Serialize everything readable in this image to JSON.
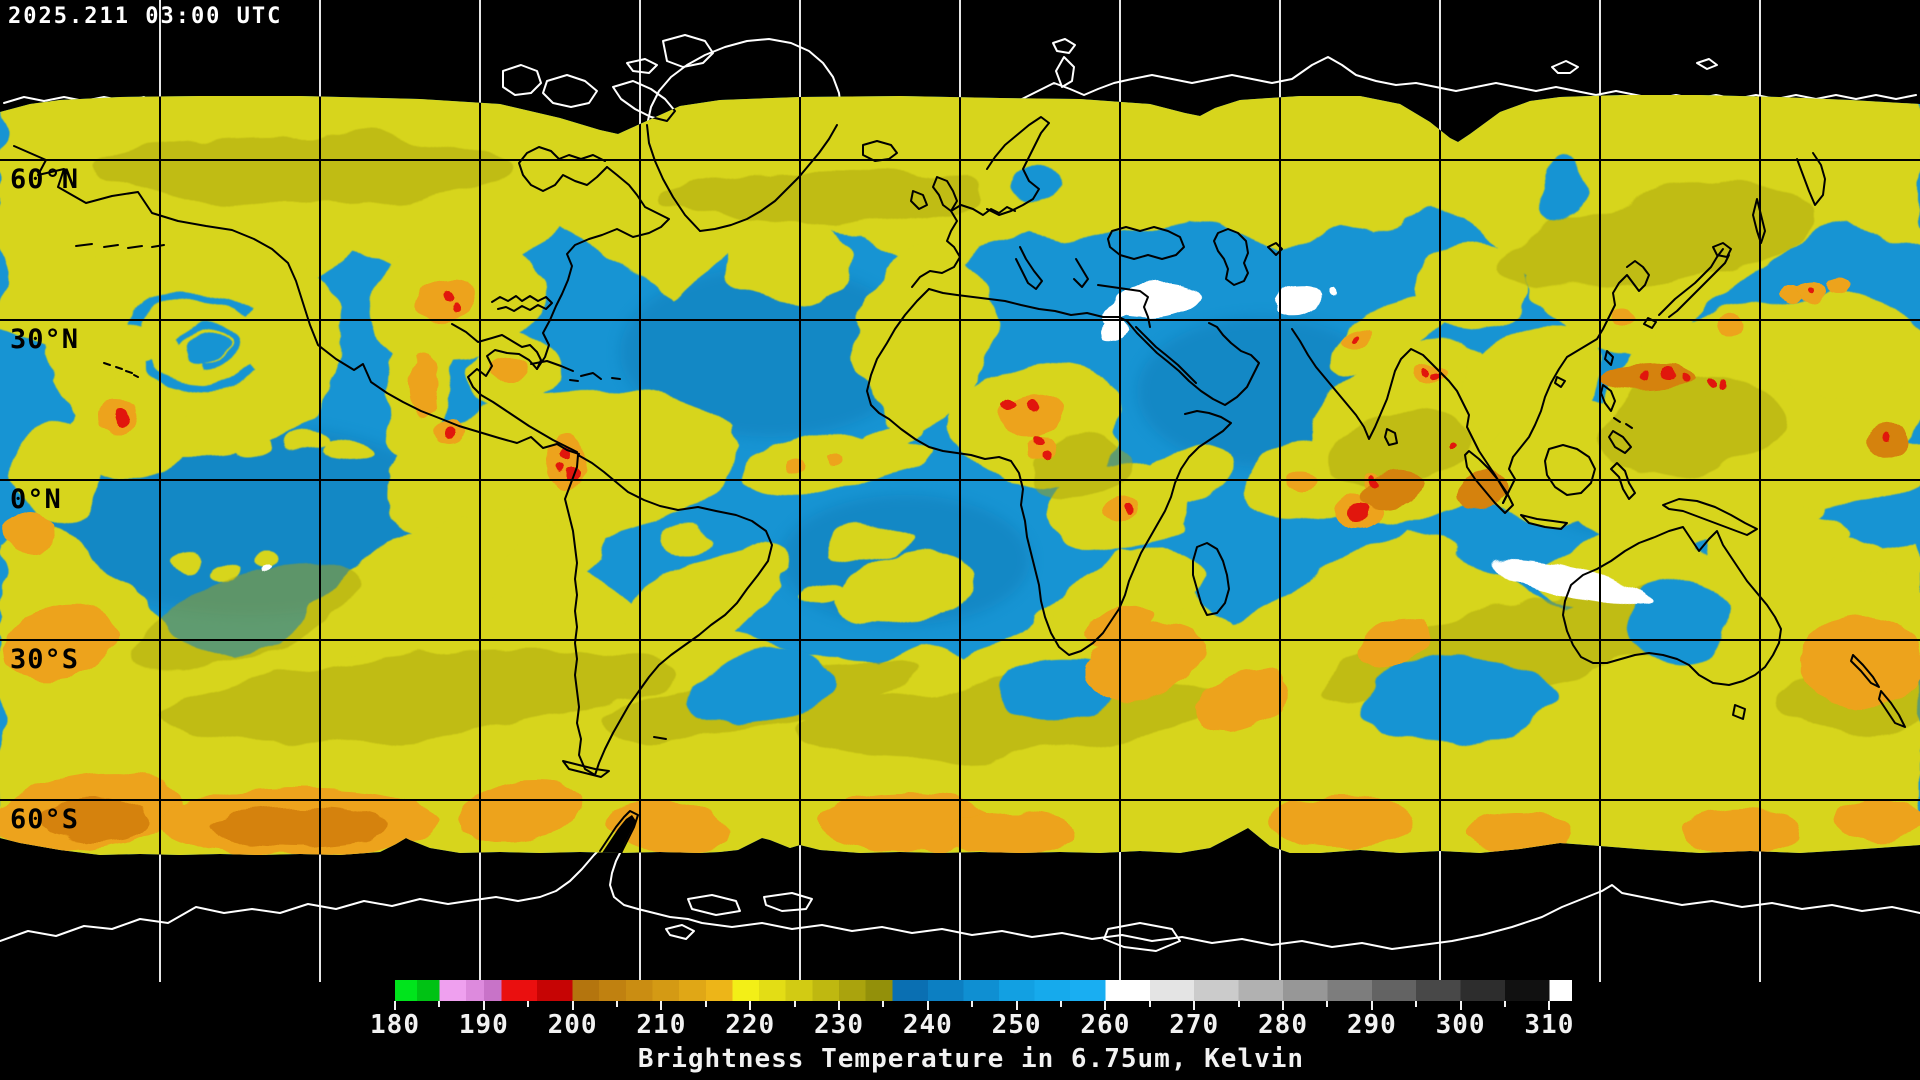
{
  "header": {
    "timestamp": "2025.211 03:00 UTC"
  },
  "map": {
    "latitude_labels": [
      "60°N",
      "30°N",
      "0°N",
      "30°S",
      "60°S"
    ],
    "graticule_interval_deg": 30,
    "palette": {
      "background": "#000000",
      "moist_blue": "#1794d3",
      "dry_yellow": "#d7d51d",
      "olive_shade": "#a8a30b",
      "cold_orange": "#eda31a",
      "deep_orange": "#d5820e",
      "convective_red": "#e11207",
      "warm_white": "#ffffff",
      "coast_on_data": "#000000",
      "coast_on_void": "#ffffff"
    }
  },
  "legend": {
    "caption": "Brightness Temperature in 6.75um, Kelvin",
    "unit": "Kelvin",
    "min": 180,
    "max": 310,
    "major_step": 10,
    "minor_step": 5,
    "tick_labels": [
      "180",
      "190",
      "200",
      "210",
      "220",
      "230",
      "240",
      "250",
      "260",
      "270",
      "280",
      "290",
      "300",
      "310"
    ],
    "overflow_cap_color": "#ffffff",
    "segments": [
      {
        "from": 180.0,
        "to": 182.5,
        "color": "#00e41c"
      },
      {
        "from": 182.5,
        "to": 185.0,
        "color": "#00c214"
      },
      {
        "from": 185.0,
        "to": 188.0,
        "color": "#efa0ef"
      },
      {
        "from": 188.0,
        "to": 190.0,
        "color": "#dd8add"
      },
      {
        "from": 190.0,
        "to": 192.0,
        "color": "#c873c8"
      },
      {
        "from": 192.0,
        "to": 196.0,
        "color": "#ea0f0f"
      },
      {
        "from": 196.0,
        "to": 200.0,
        "color": "#c60404"
      },
      {
        "from": 200.0,
        "to": 203.0,
        "color": "#b4750e"
      },
      {
        "from": 203.0,
        "to": 206.0,
        "color": "#c08110"
      },
      {
        "from": 206.0,
        "to": 209.0,
        "color": "#ca8d12"
      },
      {
        "from": 209.0,
        "to": 212.0,
        "color": "#d49a14"
      },
      {
        "from": 212.0,
        "to": 215.0,
        "color": "#e0a716"
      },
      {
        "from": 215.0,
        "to": 218.0,
        "color": "#edb518"
      },
      {
        "from": 218.0,
        "to": 221.0,
        "color": "#f3ef17"
      },
      {
        "from": 221.0,
        "to": 224.0,
        "color": "#e3dd15"
      },
      {
        "from": 224.0,
        "to": 227.0,
        "color": "#d2cb13"
      },
      {
        "from": 227.0,
        "to": 230.0,
        "color": "#bfb810"
      },
      {
        "from": 230.0,
        "to": 233.0,
        "color": "#aaa30d"
      },
      {
        "from": 233.0,
        "to": 236.0,
        "color": "#93900a"
      },
      {
        "from": 236.0,
        "to": 240.0,
        "color": "#0a6fb2"
      },
      {
        "from": 240.0,
        "to": 244.0,
        "color": "#0c7fc2"
      },
      {
        "from": 244.0,
        "to": 248.0,
        "color": "#0f8fd2"
      },
      {
        "from": 248.0,
        "to": 252.0,
        "color": "#12a0e2"
      },
      {
        "from": 252.0,
        "to": 256.0,
        "color": "#16aaec"
      },
      {
        "from": 256.0,
        "to": 260.0,
        "color": "#19aef2"
      },
      {
        "from": 260.0,
        "to": 265.0,
        "color": "#ffffff"
      },
      {
        "from": 265.0,
        "to": 270.0,
        "color": "#e4e4e4"
      },
      {
        "from": 270.0,
        "to": 275.0,
        "color": "#cbcbcb"
      },
      {
        "from": 275.0,
        "to": 280.0,
        "color": "#b1b1b1"
      },
      {
        "from": 280.0,
        "to": 285.0,
        "color": "#979797"
      },
      {
        "from": 285.0,
        "to": 290.0,
        "color": "#7d7d7d"
      },
      {
        "from": 290.0,
        "to": 295.0,
        "color": "#636363"
      },
      {
        "from": 295.0,
        "to": 300.0,
        "color": "#484848"
      },
      {
        "from": 300.0,
        "to": 305.0,
        "color": "#2d2d2d"
      },
      {
        "from": 305.0,
        "to": 310.0,
        "color": "#111111"
      }
    ]
  }
}
